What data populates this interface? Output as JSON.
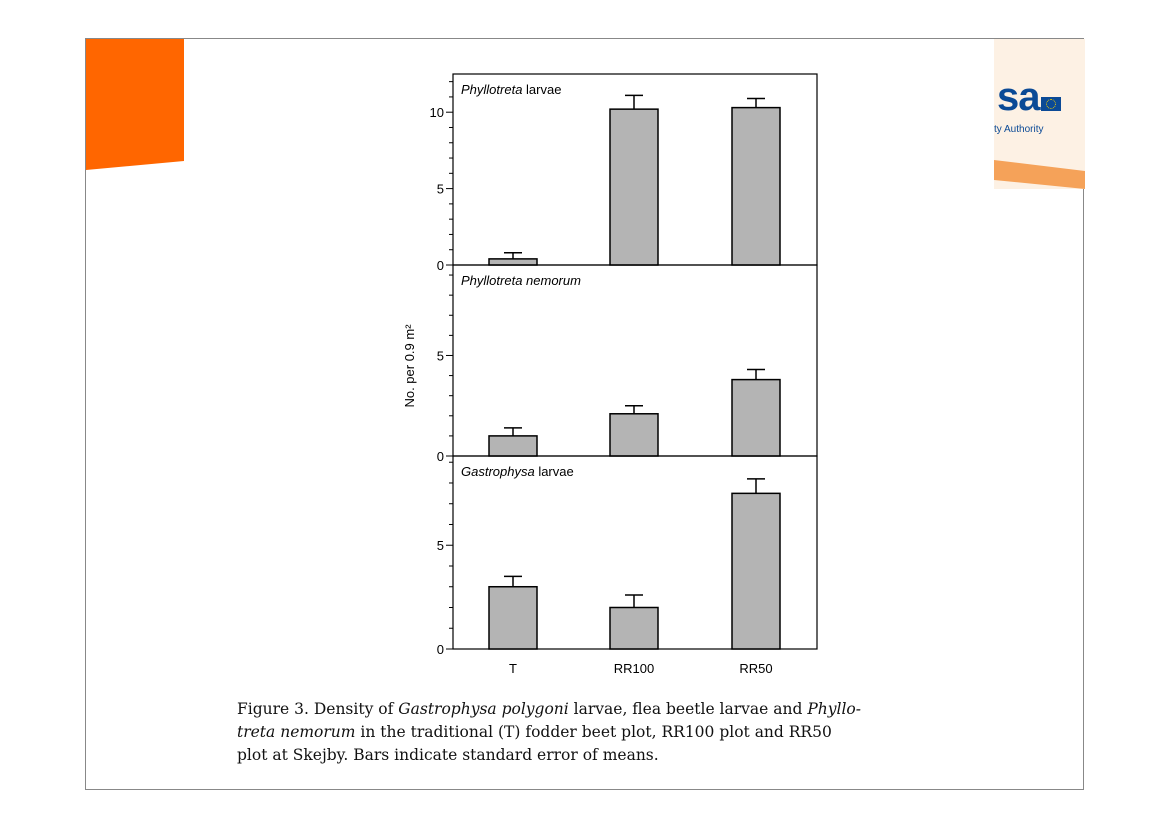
{
  "logo": {
    "text": "sa",
    "subtitle": "ty Authority",
    "colors": {
      "orange": "#ff6600",
      "light_orange": "#f5a259",
      "cream": "#fdf1e4",
      "blue": "#0b4a96"
    }
  },
  "chart_data": {
    "type": "bar",
    "categories": [
      "T",
      "RR100",
      "RR50"
    ],
    "ylabel": "No. per 0.9 m²",
    "bar_color": "#b4b4b4",
    "panels": [
      {
        "title_italic": "Phyllotreta",
        "title_rest": " larvae",
        "ylim": [
          0,
          12.5
        ],
        "yticks": [
          "0",
          "5",
          "10"
        ],
        "values": [
          0.4,
          10.2,
          10.3
        ],
        "errors": [
          0.4,
          0.9,
          0.6
        ]
      },
      {
        "title_italic": "Phyllotreta nemorum",
        "title_rest": "",
        "ylim": [
          0,
          9.5
        ],
        "yticks": [
          "0",
          "5"
        ],
        "values": [
          1.0,
          2.1,
          3.8
        ],
        "errors": [
          0.4,
          0.4,
          0.5
        ]
      },
      {
        "title_italic": "Gastrophysa",
        "title_rest": " larvae",
        "ylim": [
          0,
          9.3
        ],
        "yticks": [
          "0",
          "5"
        ],
        "values": [
          3.0,
          2.0,
          7.5
        ],
        "errors": [
          0.5,
          0.6,
          0.7
        ]
      }
    ]
  },
  "caption": {
    "line1_a": "Figure 3. Density of ",
    "line1_b": "Gastrophysa polygoni",
    "line1_c": " larvae, flea beetle larvae and ",
    "line1_d": "Phyllo-",
    "line2_a": "treta nemorum",
    "line2_b": " in the traditional (T) fodder beet plot, RR100 plot and RR50",
    "line3": "plot at Skejby. Bars indicate standard error of means."
  }
}
